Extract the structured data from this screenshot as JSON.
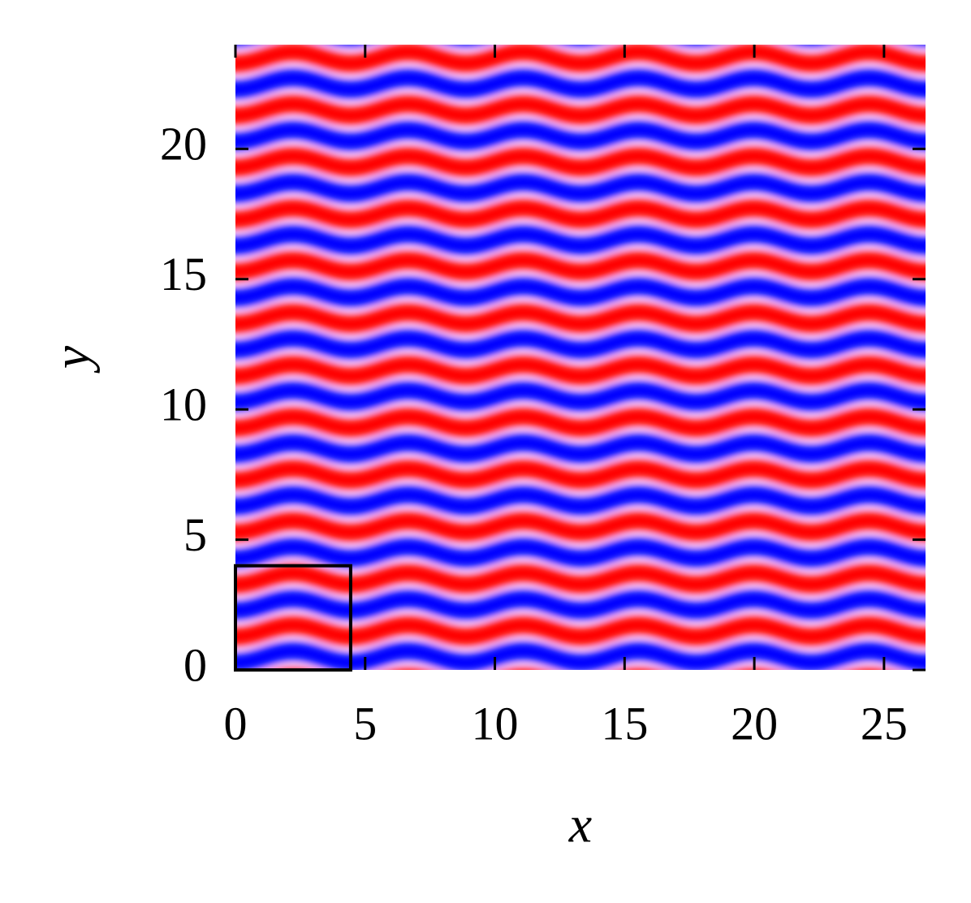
{
  "chart_data": {
    "type": "field",
    "xlabel": "x",
    "ylabel": "y",
    "xlim": [
      0,
      26.6
    ],
    "ylim": [
      0,
      24
    ],
    "xticks": [
      0,
      5,
      10,
      15,
      20,
      25
    ],
    "yticks": [
      0,
      5,
      10,
      15,
      20
    ],
    "colors": [
      "#0000ff",
      "#ff0000"
    ],
    "cell": {
      "xlim": [
        0,
        4.44
      ],
      "ylim": [
        0,
        4
      ]
    }
  }
}
